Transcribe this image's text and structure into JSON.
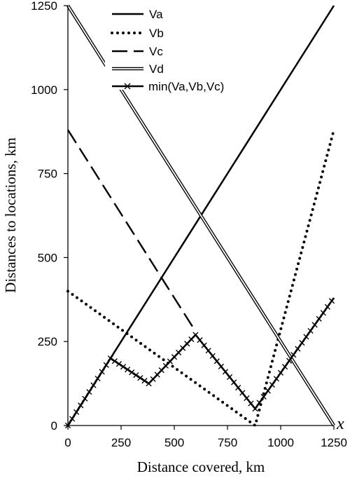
{
  "chart_data": {
    "type": "line",
    "title": "",
    "xlabel": "Distance covered, km",
    "ylabel": "Distances to locations, km",
    "x_variable": "x",
    "xlim": [
      0,
      1250
    ],
    "ylim": [
      0,
      1250
    ],
    "xticks": [
      "0",
      "250",
      "500",
      "750",
      "1000",
      "1250"
    ],
    "yticks": [
      "0",
      "250",
      "500",
      "750",
      "1000",
      "1250"
    ],
    "grid": false,
    "legend_position": "top-left",
    "series": [
      {
        "name": "Va",
        "style": "solid",
        "x": [
          0,
          1250
        ],
        "y": [
          0,
          1250
        ]
      },
      {
        "name": "Vb",
        "style": "dotted",
        "x": [
          0,
          880,
          1250
        ],
        "y": [
          400,
          0,
          880
        ]
      },
      {
        "name": "Vc",
        "style": "dashed",
        "x": [
          0,
          600
        ],
        "y": [
          880,
          280
        ]
      },
      {
        "name": "Vd",
        "style": "double",
        "x": [
          0,
          1250
        ],
        "y": [
          1250,
          0
        ]
      },
      {
        "name": "min(Va,Vb,Vc)",
        "style": "solid-x-markers",
        "x": [
          0,
          200,
          380,
          600,
          880,
          1250
        ],
        "y": [
          0,
          200,
          125,
          270,
          50,
          380
        ]
      }
    ]
  }
}
